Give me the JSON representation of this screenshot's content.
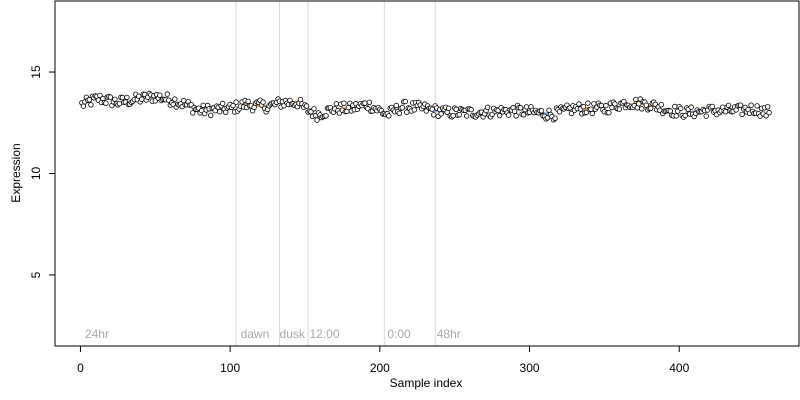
{
  "chart_data": {
    "type": "scatter",
    "xlabel": "Sample index",
    "ylabel": "Expression",
    "xlim": [
      -17,
      480
    ],
    "ylim": [
      1.5,
      18.5
    ],
    "xticks": [
      0,
      100,
      200,
      300,
      400
    ],
    "yticks": [
      5,
      10,
      15
    ],
    "grid": false,
    "legend": "none",
    "colors": {
      "point_fill": "#ffffff",
      "point_stroke": "#000000",
      "highlight_orange": "#f5a04a",
      "highlight_blue": "#7fa7e0",
      "divider": "#d9d9d9",
      "annotation_text": "#a9a9a9"
    },
    "dividers": [
      104,
      133,
      152,
      203,
      237
    ],
    "annotations": [
      {
        "text": "24hr",
        "x": 3
      },
      {
        "text": "dawn",
        "x": 107
      },
      {
        "text": "dusk",
        "x": 133
      },
      {
        "text": "12:00",
        "x": 153
      },
      {
        "text": "0:00",
        "x": 205
      },
      {
        "text": "48hr",
        "x": 238
      }
    ],
    "profile": [
      [
        1,
        13.4
      ],
      [
        12,
        13.7
      ],
      [
        25,
        13.5
      ],
      [
        50,
        13.8
      ],
      [
        62,
        13.6
      ],
      [
        70,
        13.4
      ],
      [
        80,
        13.1
      ],
      [
        100,
        13.2
      ],
      [
        110,
        13.4
      ],
      [
        125,
        13.3
      ],
      [
        135,
        13.5
      ],
      [
        145,
        13.5
      ],
      [
        150,
        13.2
      ],
      [
        158,
        12.9
      ],
      [
        170,
        13.2
      ],
      [
        180,
        13.2
      ],
      [
        192,
        13.4
      ],
      [
        205,
        12.9
      ],
      [
        215,
        13.3
      ],
      [
        230,
        13.2
      ],
      [
        245,
        13.0
      ],
      [
        260,
        13.0
      ],
      [
        290,
        13.1
      ],
      [
        305,
        13.0
      ],
      [
        315,
        12.9
      ],
      [
        330,
        13.2
      ],
      [
        350,
        13.2
      ],
      [
        365,
        13.5
      ],
      [
        380,
        13.4
      ],
      [
        395,
        13.1
      ],
      [
        405,
        13.0
      ],
      [
        420,
        13.1
      ],
      [
        440,
        13.1
      ],
      [
        450,
        13.2
      ],
      [
        458,
        13.0
      ],
      [
        461,
        13.1
      ]
    ],
    "n_points": 460,
    "highlight_segments": [
      {
        "from": 45,
        "to": 60,
        "color": "orange"
      },
      {
        "from": 85,
        "to": 100,
        "color": "blue"
      },
      {
        "from": 110,
        "to": 125,
        "color": "orange"
      },
      {
        "from": 135,
        "to": 150,
        "color": "orange"
      },
      {
        "from": 175,
        "to": 185,
        "color": "orange"
      },
      {
        "from": 230,
        "to": 245,
        "color": "blue"
      },
      {
        "from": 305,
        "to": 315,
        "color": "blue"
      },
      {
        "from": 330,
        "to": 340,
        "color": "orange"
      },
      {
        "from": 370,
        "to": 385,
        "color": "orange"
      },
      {
        "from": 405,
        "to": 415,
        "color": "blue"
      }
    ]
  }
}
